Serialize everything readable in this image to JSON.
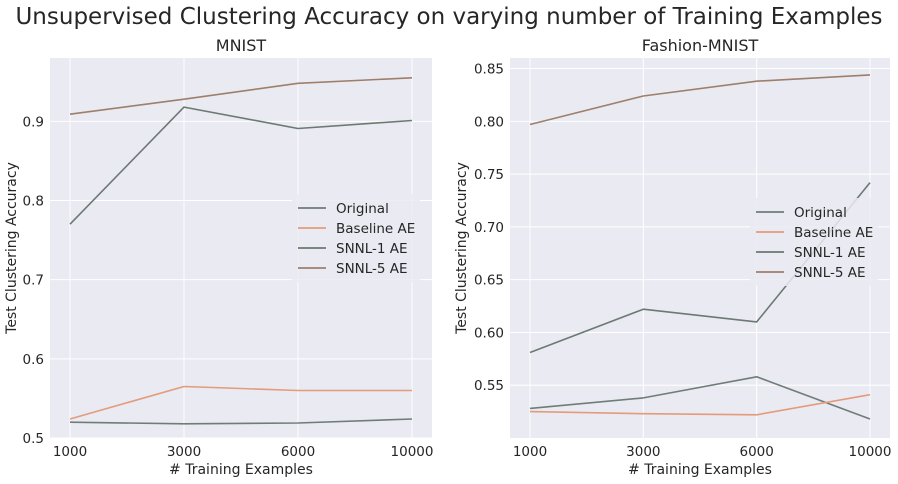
{
  "suptitle": "Unsupervised Clustering Accuracy on varying number of Training Examples",
  "colors": {
    "background": "#eaeaf2",
    "grid": "#ffffff",
    "text": "#262626",
    "Original": "#6f7d78",
    "Baseline AE": "#e39b7b",
    "SNNL-1 AE": "#6b7a72",
    "SNNL-5 AE": "#9e7f6c"
  },
  "chart_data": [
    {
      "type": "line",
      "title": "MNIST",
      "xlabel": "# Training Examples",
      "ylabel": "Test Clustering Accuracy",
      "categories": [
        "1000",
        "3000",
        "6000",
        "10000"
      ],
      "ylim": [
        0.5,
        0.98
      ],
      "yticks": [
        0.5,
        0.6,
        0.7,
        0.8,
        0.9
      ],
      "ytick_labels": [
        "0.5",
        "0.6",
        "0.7",
        "0.8",
        "0.9"
      ],
      "grid": true,
      "legend": "center-right",
      "series": [
        {
          "name": "Original",
          "values": [
            0.52,
            0.518,
            0.519,
            0.524
          ]
        },
        {
          "name": "Baseline AE",
          "values": [
            0.524,
            0.565,
            0.56,
            0.56
          ]
        },
        {
          "name": "SNNL-1 AE",
          "values": [
            0.77,
            0.918,
            0.891,
            0.901
          ]
        },
        {
          "name": "SNNL-5 AE",
          "values": [
            0.909,
            0.928,
            0.948,
            0.955
          ]
        }
      ]
    },
    {
      "type": "line",
      "title": "Fashion-MNIST",
      "xlabel": "# Training Examples",
      "ylabel": "Test Clustering Accuracy",
      "categories": [
        "1000",
        "3000",
        "6000",
        "10000"
      ],
      "ylim": [
        0.5,
        0.86
      ],
      "yticks": [
        0.55,
        0.6,
        0.65,
        0.7,
        0.75,
        0.8,
        0.85
      ],
      "ytick_labels": [
        "0.55",
        "0.60",
        "0.65",
        "0.70",
        "0.75",
        "0.80",
        "0.85"
      ],
      "grid": true,
      "legend": "center-right",
      "series": [
        {
          "name": "Original",
          "values": [
            0.528,
            0.538,
            0.558,
            0.518
          ]
        },
        {
          "name": "Baseline AE",
          "values": [
            0.525,
            0.523,
            0.522,
            0.541
          ]
        },
        {
          "name": "SNNL-1 AE",
          "values": [
            0.581,
            0.622,
            0.61,
            0.742
          ]
        },
        {
          "name": "SNNL-5 AE",
          "values": [
            0.797,
            0.824,
            0.838,
            0.844
          ]
        }
      ]
    }
  ]
}
